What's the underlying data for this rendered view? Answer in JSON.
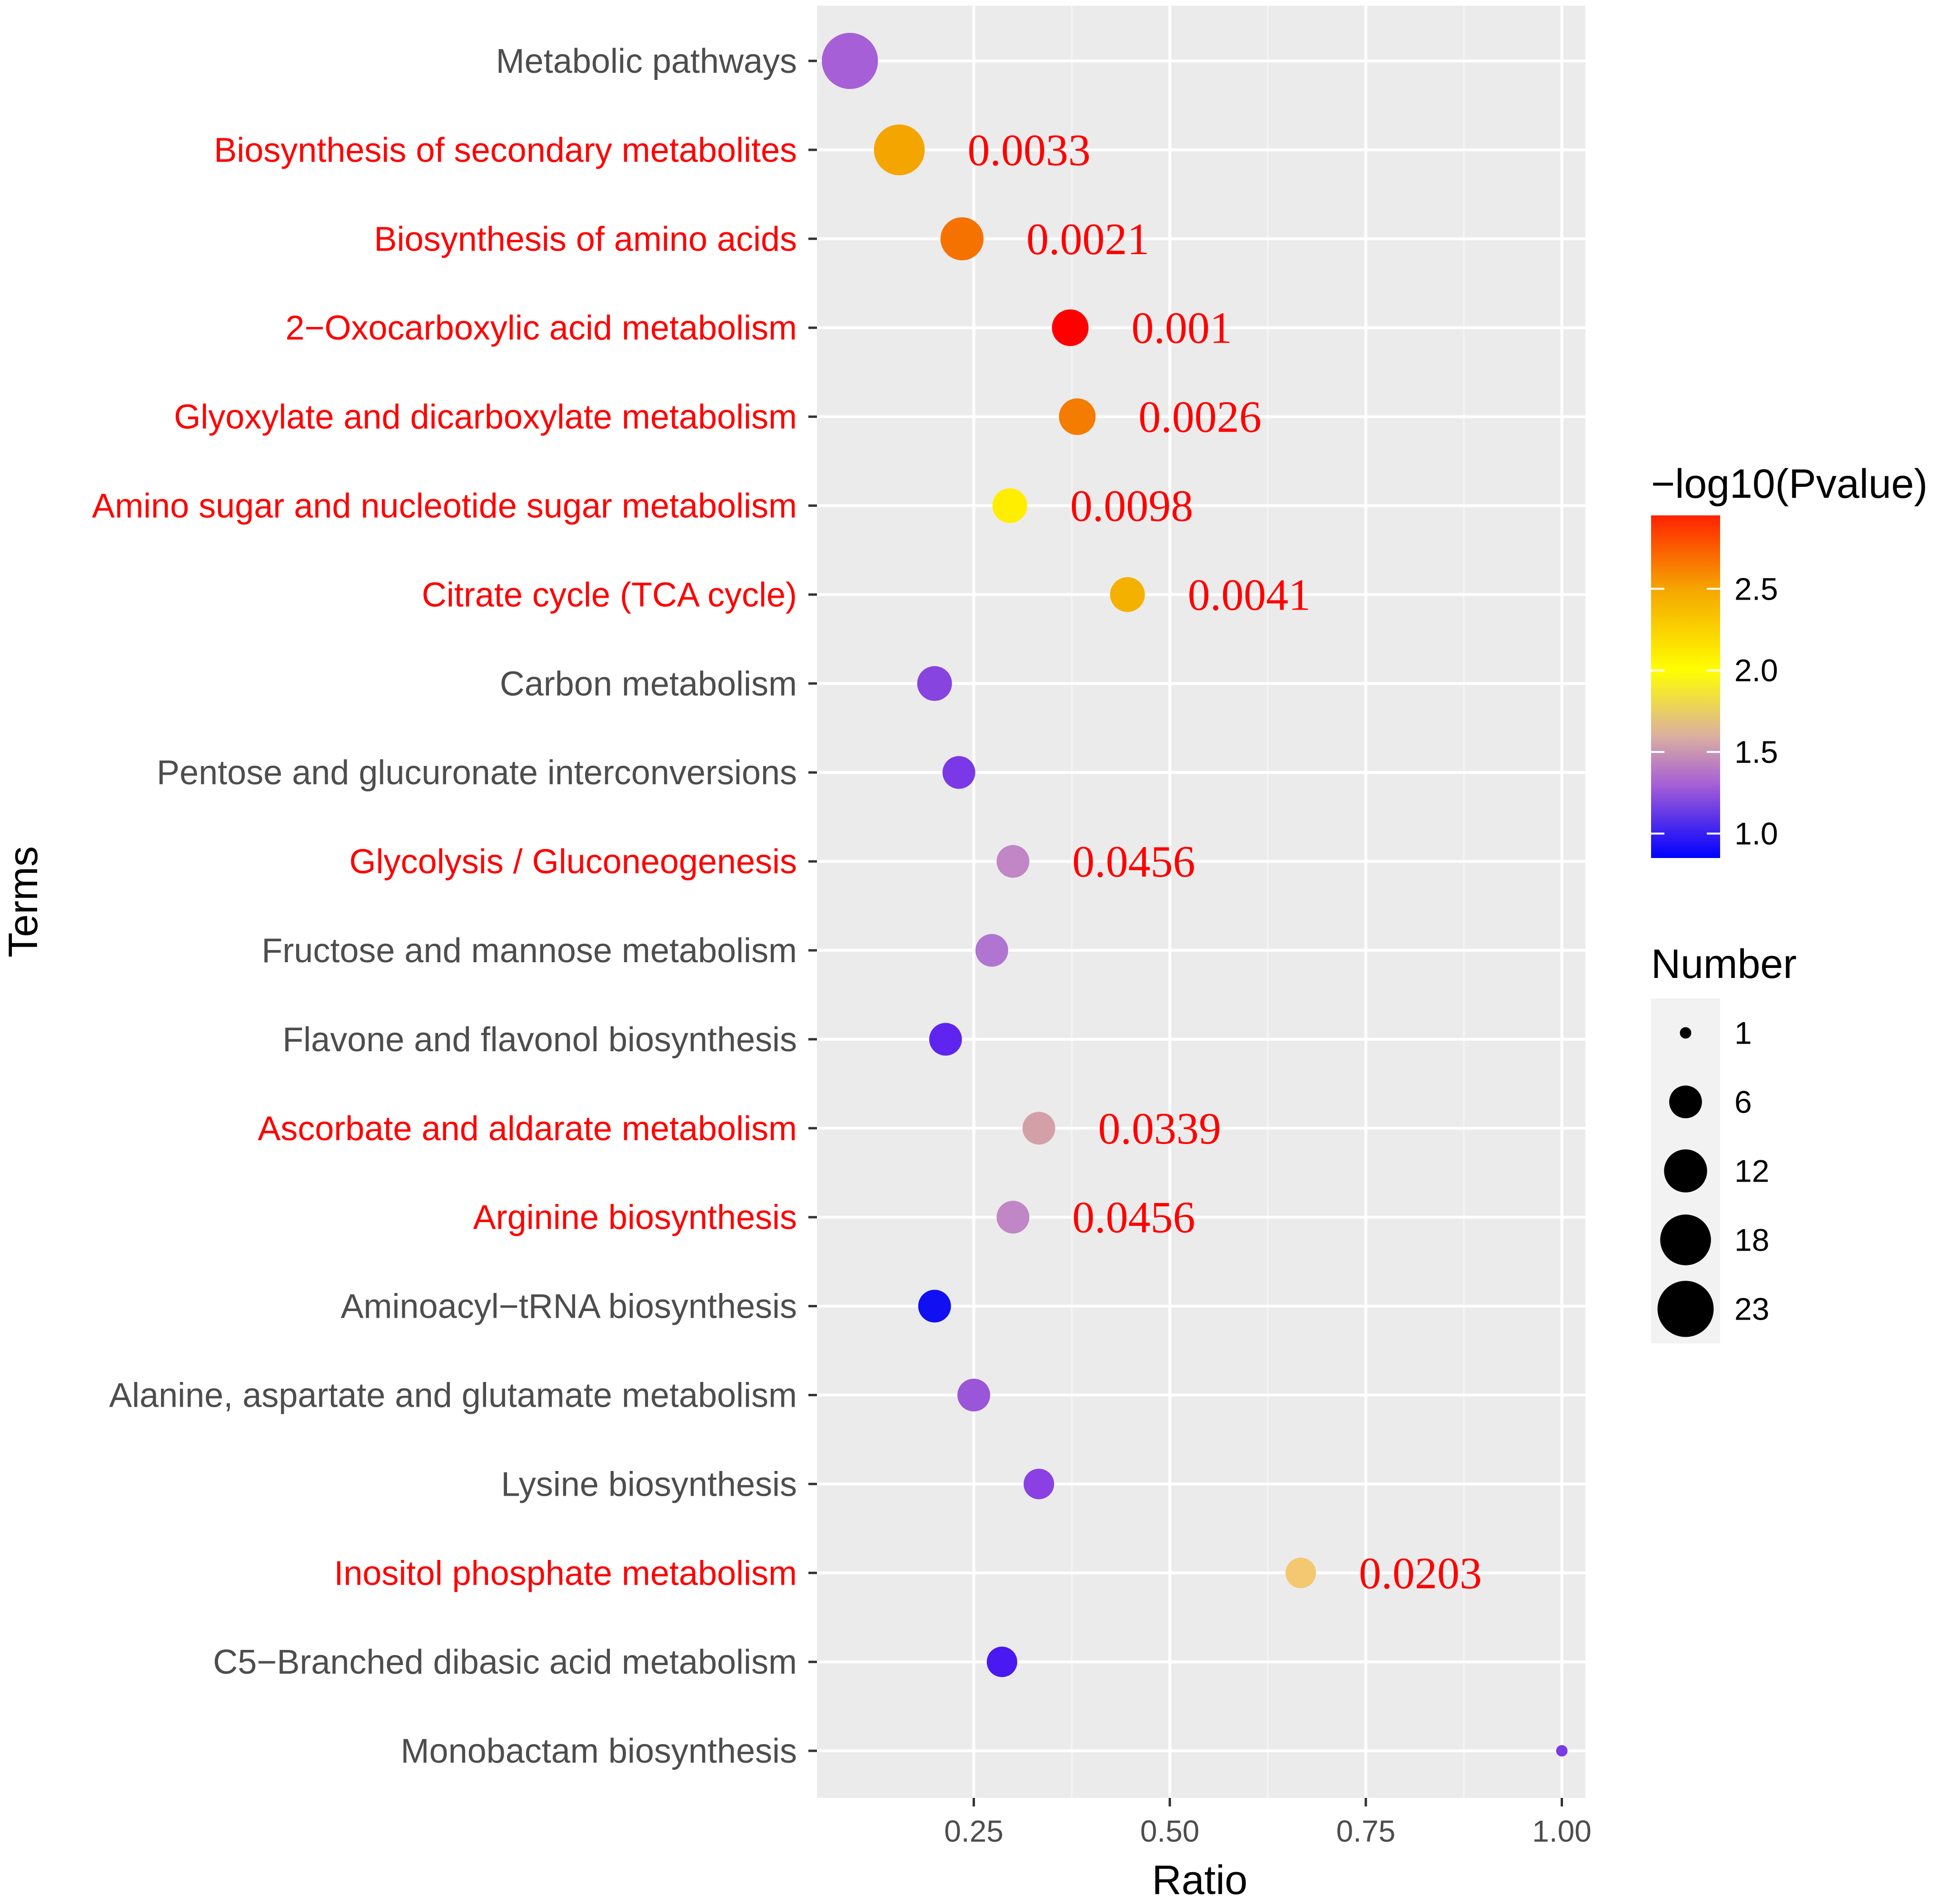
{
  "chart_data": {
    "type": "scatter",
    "title": "",
    "xlabel": "Ratio",
    "ylabel": "Terms",
    "xlim": [
      0.05,
      1.03
    ],
    "x_ticks": [
      0.25,
      0.5,
      0.75,
      1.0
    ],
    "x_tick_labels": [
      "0.25",
      "0.50",
      "0.75",
      "1.00"
    ],
    "grid": true,
    "highlight_color": "#ff0000",
    "label_color": "#4d4d4d",
    "points": [
      {
        "term": "Metabolic pathways",
        "ratio": 0.092,
        "number": 23,
        "neglog10p": 1.45,
        "color": "#a65fd6",
        "highlight": false,
        "annotation": ""
      },
      {
        "term": "Biosynthesis of secondary metabolites",
        "ratio": 0.155,
        "number": 18,
        "neglog10p": 2.48,
        "color": "#f5a500",
        "highlight": true,
        "annotation": "0.0033"
      },
      {
        "term": "Biosynthesis of amino acids",
        "ratio": 0.235,
        "number": 12,
        "neglog10p": 2.68,
        "color": "#f57200",
        "highlight": true,
        "annotation": "0.0021"
      },
      {
        "term": "2−Oxocarboxylic acid metabolism",
        "ratio": 0.373,
        "number": 8,
        "neglog10p": 3.0,
        "color": "#ff0000",
        "highlight": true,
        "annotation": "0.001"
      },
      {
        "term": "Glyoxylate and dicarboxylate metabolism",
        "ratio": 0.382,
        "number": 8,
        "neglog10p": 2.59,
        "color": "#f47c00",
        "highlight": true,
        "annotation": "0.0026"
      },
      {
        "term": "Amino sugar and nucleotide sugar metabolism",
        "ratio": 0.296,
        "number": 7,
        "neglog10p": 2.01,
        "color": "#ffee00",
        "highlight": true,
        "annotation": "0.0098"
      },
      {
        "term": "Citrate cycle (TCA cycle)",
        "ratio": 0.446,
        "number": 7,
        "neglog10p": 2.39,
        "color": "#f5b100",
        "highlight": true,
        "annotation": "0.0041"
      },
      {
        "term": "Carbon metabolism",
        "ratio": 0.2,
        "number": 7,
        "neglog10p": 1.15,
        "color": "#8844de",
        "highlight": false,
        "annotation": ""
      },
      {
        "term": "Pentose and glucuronate interconversions",
        "ratio": 0.231,
        "number": 6,
        "neglog10p": 1.08,
        "color": "#7a38e6",
        "highlight": false,
        "annotation": ""
      },
      {
        "term": "Glycolysis / Gluconeogenesis",
        "ratio": 0.3,
        "number": 6,
        "neglog10p": 1.34,
        "color": "#c086c6",
        "highlight": true,
        "annotation": "0.0456"
      },
      {
        "term": "Fructose and mannose metabolism",
        "ratio": 0.273,
        "number": 6,
        "neglog10p": 1.3,
        "color": "#b074d1",
        "highlight": false,
        "annotation": ""
      },
      {
        "term": "Flavone and flavonol biosynthesis",
        "ratio": 0.214,
        "number": 6,
        "neglog10p": 1.02,
        "color": "#5f25ee",
        "highlight": false,
        "annotation": ""
      },
      {
        "term": "Ascorbate and aldarate metabolism",
        "ratio": 0.333,
        "number": 6,
        "neglog10p": 1.47,
        "color": "#d4a0a8",
        "highlight": true,
        "annotation": "0.0339"
      },
      {
        "term": "Arginine biosynthesis",
        "ratio": 0.3,
        "number": 6,
        "neglog10p": 1.34,
        "color": "#c086c6",
        "highlight": true,
        "annotation": "0.0456"
      },
      {
        "term": "Aminoacyl−tRNA biosynthesis",
        "ratio": 0.2,
        "number": 6,
        "neglog10p": 0.92,
        "color": "#1010f2",
        "highlight": false,
        "annotation": ""
      },
      {
        "term": "Alanine, aspartate and glutamate metabolism",
        "ratio": 0.25,
        "number": 6,
        "neglog10p": 1.18,
        "color": "#9a55d8",
        "highlight": false,
        "annotation": ""
      },
      {
        "term": "Lysine biosynthesis",
        "ratio": 0.333,
        "number": 5,
        "neglog10p": 1.12,
        "color": "#8a40e2",
        "highlight": false,
        "annotation": ""
      },
      {
        "term": "Inositol phosphate metabolism",
        "ratio": 0.667,
        "number": 5,
        "neglog10p": 1.69,
        "color": "#f4c870",
        "highlight": true,
        "annotation": "0.0203"
      },
      {
        "term": "C5−Branched dibasic acid metabolism",
        "ratio": 0.286,
        "number": 5,
        "neglog10p": 1.0,
        "color": "#4a18f0",
        "highlight": false,
        "annotation": ""
      },
      {
        "term": "Monobactam biosynthesis",
        "ratio": 1.0,
        "number": 1,
        "neglog10p": 1.1,
        "color": "#7a3ae4",
        "highlight": false,
        "annotation": ""
      }
    ],
    "color_legend": {
      "title": "−log10(Pvalue)",
      "range": [
        0.85,
        2.95
      ],
      "ticks": [
        1.0,
        1.5,
        2.0,
        2.5
      ],
      "tick_labels": [
        "1.0",
        "1.5",
        "2.0",
        "2.5"
      ],
      "gradient_stops": [
        {
          "value": 0.85,
          "color": "#0000ff"
        },
        {
          "value": 1.3,
          "color": "#a65fd6"
        },
        {
          "value": 1.6,
          "color": "#dbb0a0"
        },
        {
          "value": 2.0,
          "color": "#ffff00"
        },
        {
          "value": 2.5,
          "color": "#f5a500"
        },
        {
          "value": 2.95,
          "color": "#ff2200"
        }
      ]
    },
    "size_legend": {
      "title": "Number",
      "values": [
        1,
        6,
        12,
        18,
        23
      ],
      "labels": [
        "1",
        "6",
        "12",
        "18",
        "23"
      ]
    }
  }
}
